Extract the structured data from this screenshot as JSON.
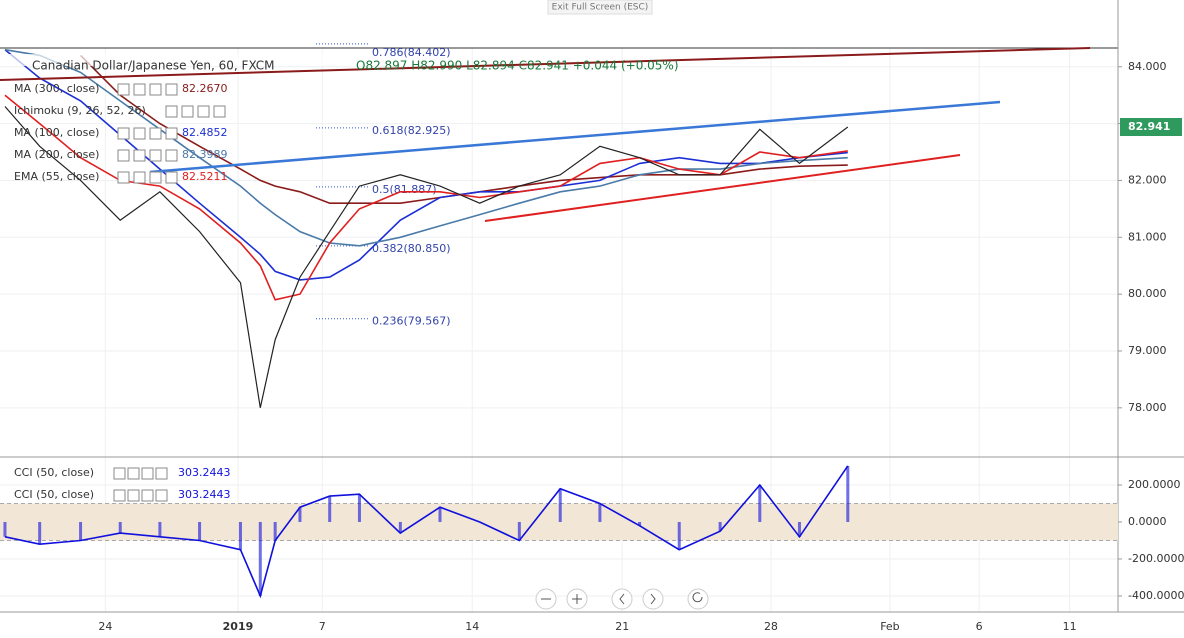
{
  "ui": {
    "exit_button": "Exit Full Screen (ESC)"
  },
  "chart_data": [
    {
      "type": "line",
      "title": "Canadian Dollar/Japanese Yen, 60, FXCM",
      "ohlc": "O82.897  H82.990  L82.894  C82.941  +0.044 (+0.05%)",
      "indicators": [
        "Ichimoku (9, 26, 52, 26)"
      ],
      "price_label": "82.941",
      "x": [
        4,
        32,
        65,
        97,
        129,
        161,
        194,
        210,
        222,
        242,
        266,
        290,
        323,
        355,
        387,
        419,
        452,
        484,
        516,
        548,
        581,
        613,
        645,
        684
      ],
      "series": [
        {
          "name": "MA (300, close)",
          "color": "#8b1a1a",
          "last_label": "82.2670",
          "values": [
            null,
            null,
            84.2,
            83.5,
            83.0,
            82.6,
            82.2,
            82.0,
            81.9,
            81.8,
            81.6,
            81.6,
            81.6,
            81.7,
            81.8,
            81.9,
            82.0,
            82.05,
            82.1,
            82.1,
            82.1,
            82.2,
            82.25,
            82.27
          ]
        },
        {
          "name": "MA (100, close)",
          "color": "#1c2fd6",
          "last_label": "82.4852",
          "values": [
            84.3,
            83.8,
            83.4,
            82.8,
            82.2,
            81.6,
            81.0,
            80.7,
            80.4,
            80.25,
            80.3,
            80.6,
            81.3,
            81.7,
            81.8,
            81.8,
            81.9,
            82.0,
            82.3,
            82.4,
            82.3,
            82.3,
            82.4,
            82.49
          ]
        },
        {
          "name": "MA (200, close)",
          "color": "#4a7aa8",
          "last_label": "82.3989",
          "values": [
            84.3,
            84.2,
            83.9,
            83.4,
            82.9,
            82.4,
            81.9,
            81.6,
            81.4,
            81.1,
            80.9,
            80.85,
            81.0,
            81.2,
            81.4,
            81.6,
            81.8,
            81.9,
            82.1,
            82.2,
            82.2,
            82.3,
            82.35,
            82.4
          ]
        },
        {
          "name": "EMA (55, close)",
          "color": "#e02020",
          "last_label": "82.5211",
          "values": [
            83.5,
            83.0,
            82.4,
            82.0,
            81.9,
            81.5,
            80.9,
            80.5,
            79.9,
            80.0,
            80.9,
            81.5,
            81.8,
            81.8,
            81.7,
            81.8,
            81.9,
            82.3,
            82.4,
            82.2,
            82.1,
            82.5,
            82.4,
            82.52
          ]
        },
        {
          "color": "#222222",
          "values": [
            83.3,
            82.6,
            82.0,
            81.3,
            81.8,
            81.1,
            80.2,
            78.0,
            79.2,
            80.3,
            81.1,
            81.9,
            82.1,
            81.9,
            81.6,
            81.9,
            82.1,
            82.6,
            82.4,
            82.1,
            82.1,
            82.9,
            82.3,
            82.94
          ]
        }
      ],
      "annotations": [
        {
          "level": 84.402,
          "label": "0.786(84.402)"
        },
        {
          "level": 82.925,
          "label": "0.618(82.925)"
        },
        {
          "level": 81.887,
          "label": "0.5(81.887)"
        },
        {
          "level": 80.85,
          "label": "0.382(80.850)"
        },
        {
          "level": 79.567,
          "label": "0.236(79.567)"
        }
      ],
      "xlim": [
        0,
        902
      ],
      "xticks": [
        {
          "value": 85,
          "label": "24"
        },
        {
          "value": 192,
          "label": "2019"
        },
        {
          "value": 260,
          "label": "7"
        },
        {
          "value": 381,
          "label": "14"
        },
        {
          "value": 502,
          "label": "21"
        },
        {
          "value": 622,
          "label": "28"
        },
        {
          "value": 718,
          "label": "Feb"
        },
        {
          "value": 790,
          "label": "6"
        },
        {
          "value": 863,
          "label": "11"
        }
      ],
      "ylim": [
        77.17,
        84.33
      ],
      "yticks": [
        {
          "value": 78,
          "label": "78.000"
        },
        {
          "value": 79,
          "label": "79.000"
        },
        {
          "value": 80,
          "label": "80.000"
        },
        {
          "value": 81,
          "label": "81.000"
        },
        {
          "value": 82,
          "label": "82.000"
        },
        {
          "value": 83,
          "label": "83.000"
        },
        {
          "value": 84,
          "label": "84.000"
        }
      ],
      "grid": true
    },
    {
      "type": "area",
      "legend": [
        "CCI (50, close)",
        "CCI (50, close)"
      ],
      "last_label": "303.2443",
      "band": [
        -100,
        100
      ],
      "series": [
        {
          "name": "CCI (50, close)",
          "color": "#1010dd",
          "values": [
            -80,
            -120,
            -100,
            -60,
            -80,
            -100,
            -150,
            -400,
            -100,
            80,
            140,
            150,
            -60,
            80,
            0,
            -100,
            180,
            100,
            -20,
            -150,
            -50,
            200,
            -80,
            303.24
          ]
        }
      ],
      "ylim": [
        -476,
        346
      ],
      "yticks": [
        {
          "value": 200,
          "label": "200.0000"
        },
        {
          "value": 0,
          "label": "0.0000"
        },
        {
          "value": -200,
          "label": "-200.0000"
        },
        {
          "value": -400,
          "label": "-400.0000"
        }
      ],
      "grid": true
    }
  ]
}
